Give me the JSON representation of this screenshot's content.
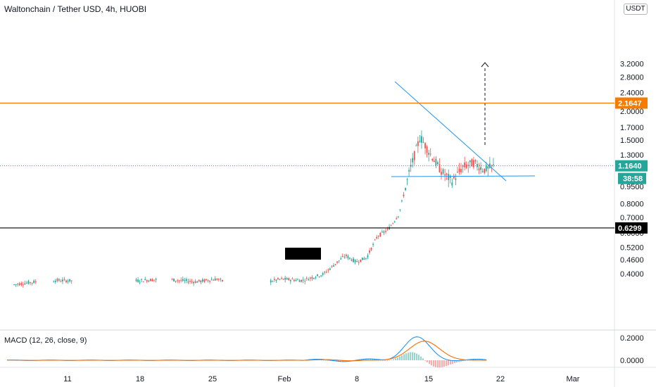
{
  "header": {
    "title": "Waltonchain / Tether USD, 4h, HUOBI"
  },
  "price_axis": {
    "currency_label": "USDT",
    "ticks": [
      "3.2000",
      "2.8000",
      "2.4000",
      "2.0000",
      "1.7000",
      "1.5000",
      "1.3000",
      "0.9500",
      "0.8000",
      "0.7000",
      "0.6000",
      "0.5200",
      "0.4600",
      "0.4000"
    ],
    "tick_values": [
      3.2,
      2.8,
      2.4,
      2.0,
      1.7,
      1.5,
      1.3,
      0.95,
      0.8,
      0.7,
      0.6,
      0.52,
      0.46,
      0.4
    ]
  },
  "levels": [
    {
      "label": "2.1647",
      "value": 2.1647,
      "color": "#f57c00"
    },
    {
      "label": "1.1640",
      "value": 1.164,
      "color": "#26a69a"
    },
    {
      "label": "0.6299",
      "value": 0.6299,
      "color": "#000000"
    }
  ],
  "countdown": "38:58",
  "macd": {
    "title": "MACD (12, 26, close, 9)",
    "ticks": [
      "0.2000",
      "0.0000"
    ],
    "tick_values": [
      0.2,
      0.0
    ],
    "macd_color": "#2196f3",
    "signal_color": "#ff6d00",
    "hist_up_color": "#26a69a",
    "hist_down_color": "#ef5350"
  },
  "time_axis": {
    "labels": [
      "11",
      "18",
      "25",
      "Feb",
      "8",
      "15",
      "22",
      "Mar"
    ]
  },
  "colors": {
    "up": "#26a69a",
    "down": "#ef5350",
    "trendline": "#2196f3"
  },
  "chart_data": {
    "type": "candlestick",
    "title": "Waltonchain / Tether USD, 4h, HUOBI",
    "y_scale": "log",
    "ylim": [
      0.38,
      3.3
    ],
    "x": [
      "2021-01-11",
      "2021-01-18",
      "2021-01-25",
      "2021-02-01",
      "2021-02-08",
      "2021-02-15",
      "2021-02-22",
      "2021-03-01"
    ],
    "series": [
      {
        "points": [
          [
            "2021-01-06",
            0.36
          ],
          [
            "2021-01-08",
            0.37
          ],
          [
            "2021-01-10",
            0.375
          ],
          [
            "2021-01-16",
            0.37
          ],
          [
            "2021-01-18",
            0.375
          ],
          [
            "2021-01-20",
            0.38
          ],
          [
            "2021-01-23",
            0.37
          ],
          [
            "2021-01-25",
            0.38
          ],
          [
            "2021-01-27",
            0.35
          ],
          [
            "2021-01-31",
            0.38
          ],
          [
            "2021-02-02",
            0.375
          ],
          [
            "2021-02-04",
            0.4
          ],
          [
            "2021-02-05",
            0.44
          ],
          [
            "2021-02-06",
            0.48
          ],
          [
            "2021-02-07",
            0.45
          ],
          [
            "2021-02-08",
            0.47
          ],
          [
            "2021-02-09",
            0.58
          ],
          [
            "2021-02-10",
            0.62
          ],
          [
            "2021-02-11",
            0.72
          ],
          [
            "2021-02-12",
            1.1
          ],
          [
            "2021-02-13",
            1.55
          ],
          [
            "2021-02-14",
            1.3
          ],
          [
            "2021-02-15",
            1.1
          ],
          [
            "2021-02-16",
            1.0
          ],
          [
            "2021-02-17",
            1.15
          ],
          [
            "2021-02-18",
            1.2
          ],
          [
            "2021-02-19",
            1.12
          ],
          [
            "2021-02-20",
            1.164
          ]
        ]
      }
    ],
    "target": 2.1647,
    "support": 0.6299
  }
}
